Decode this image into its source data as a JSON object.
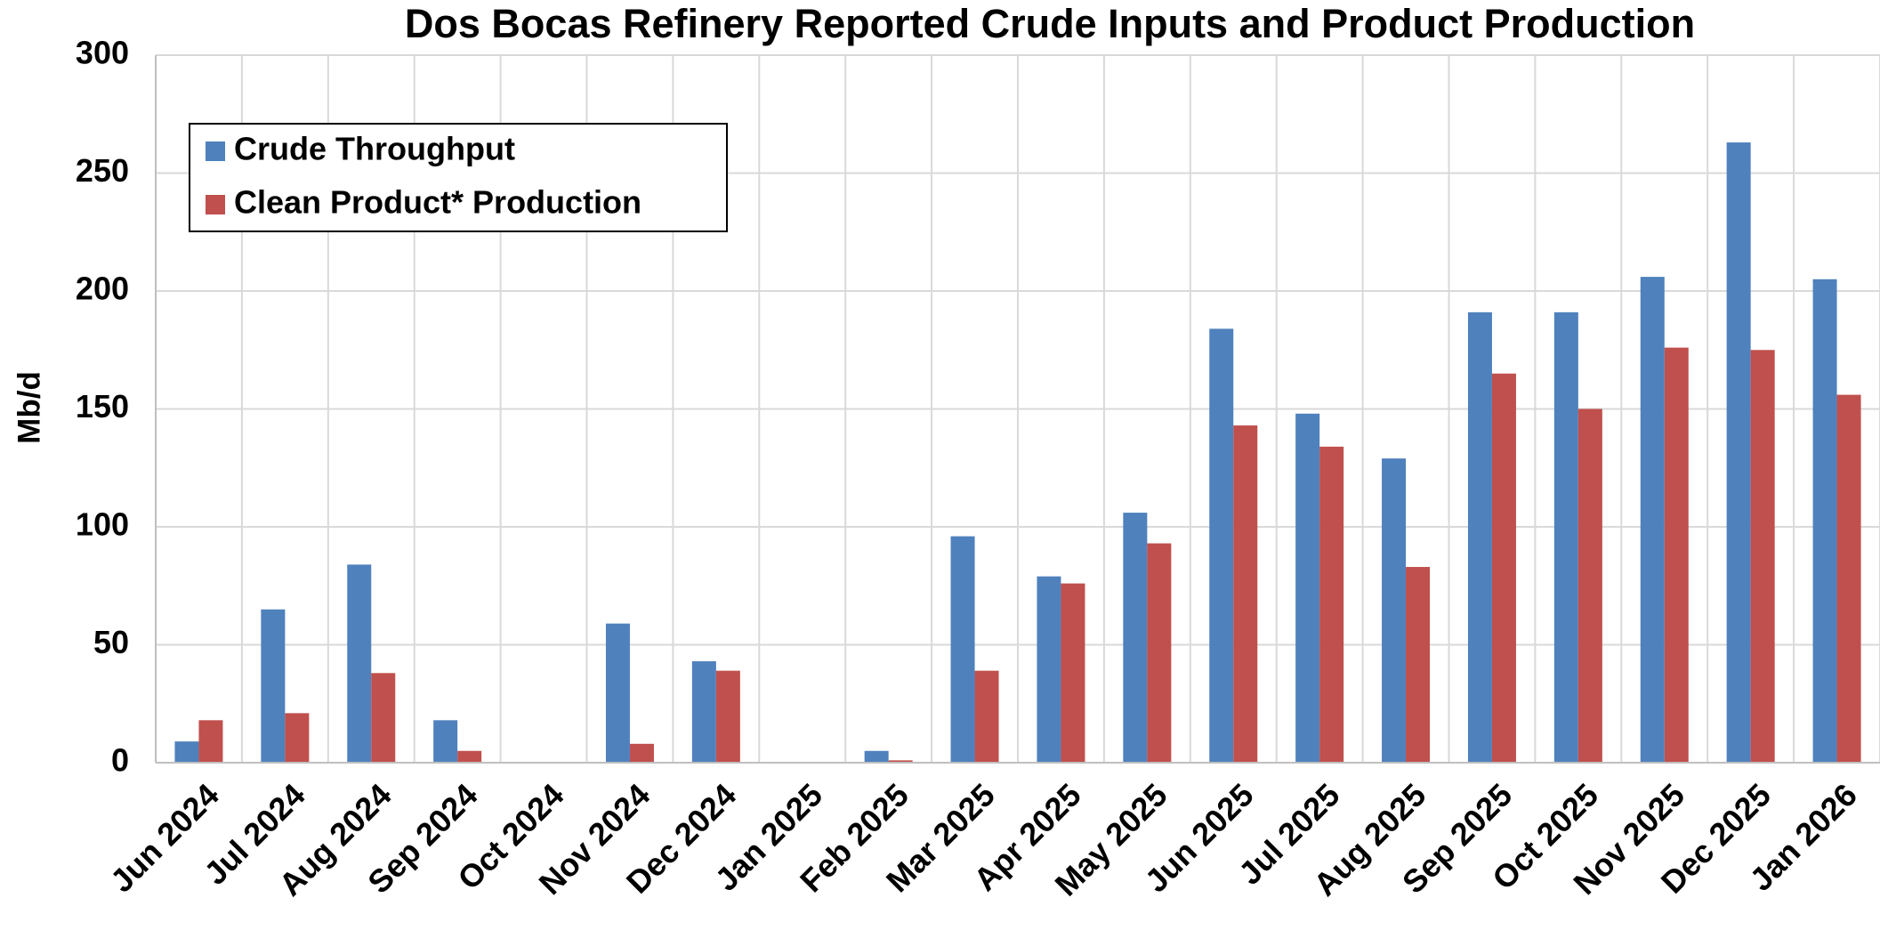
{
  "chart_data": {
    "type": "bar",
    "title": "Dos Bocas Refinery Reported Crude Inputs and Product Production",
    "y_label": "Mb/d",
    "categories": [
      "Jun 2024",
      "Jul 2024",
      "Aug 2024",
      "Sep 2024",
      "Oct 2024",
      "Nov 2024",
      "Dec 2024",
      "Jan 2025",
      "Feb 2025",
      "Mar 2025",
      "Apr 2025",
      "May 2025",
      "Jun 2025",
      "Jul 2025",
      "Aug 2025",
      "Sep 2025",
      "Oct 2025",
      "Nov 2025",
      "Dec 2025",
      "Jan 2026"
    ],
    "series": [
      {
        "name": "Crude Throughput",
        "color": "#4f81bd",
        "values": [
          9,
          65,
          84,
          18,
          0,
          59,
          43,
          0,
          5,
          96,
          79,
          106,
          184,
          148,
          129,
          191,
          191,
          206,
          263,
          205
        ]
      },
      {
        "name": "Clean Product* Production",
        "color": "#c0504d",
        "values": [
          18,
          21,
          38,
          5,
          0,
          8,
          39,
          0,
          1,
          39,
          76,
          93,
          143,
          134,
          83,
          165,
          150,
          176,
          175,
          156
        ]
      }
    ],
    "ylim": [
      0,
      300
    ],
    "yticks": [
      0,
      50,
      100,
      150,
      200,
      250,
      300
    ],
    "grid": true,
    "legend": "upper left"
  }
}
